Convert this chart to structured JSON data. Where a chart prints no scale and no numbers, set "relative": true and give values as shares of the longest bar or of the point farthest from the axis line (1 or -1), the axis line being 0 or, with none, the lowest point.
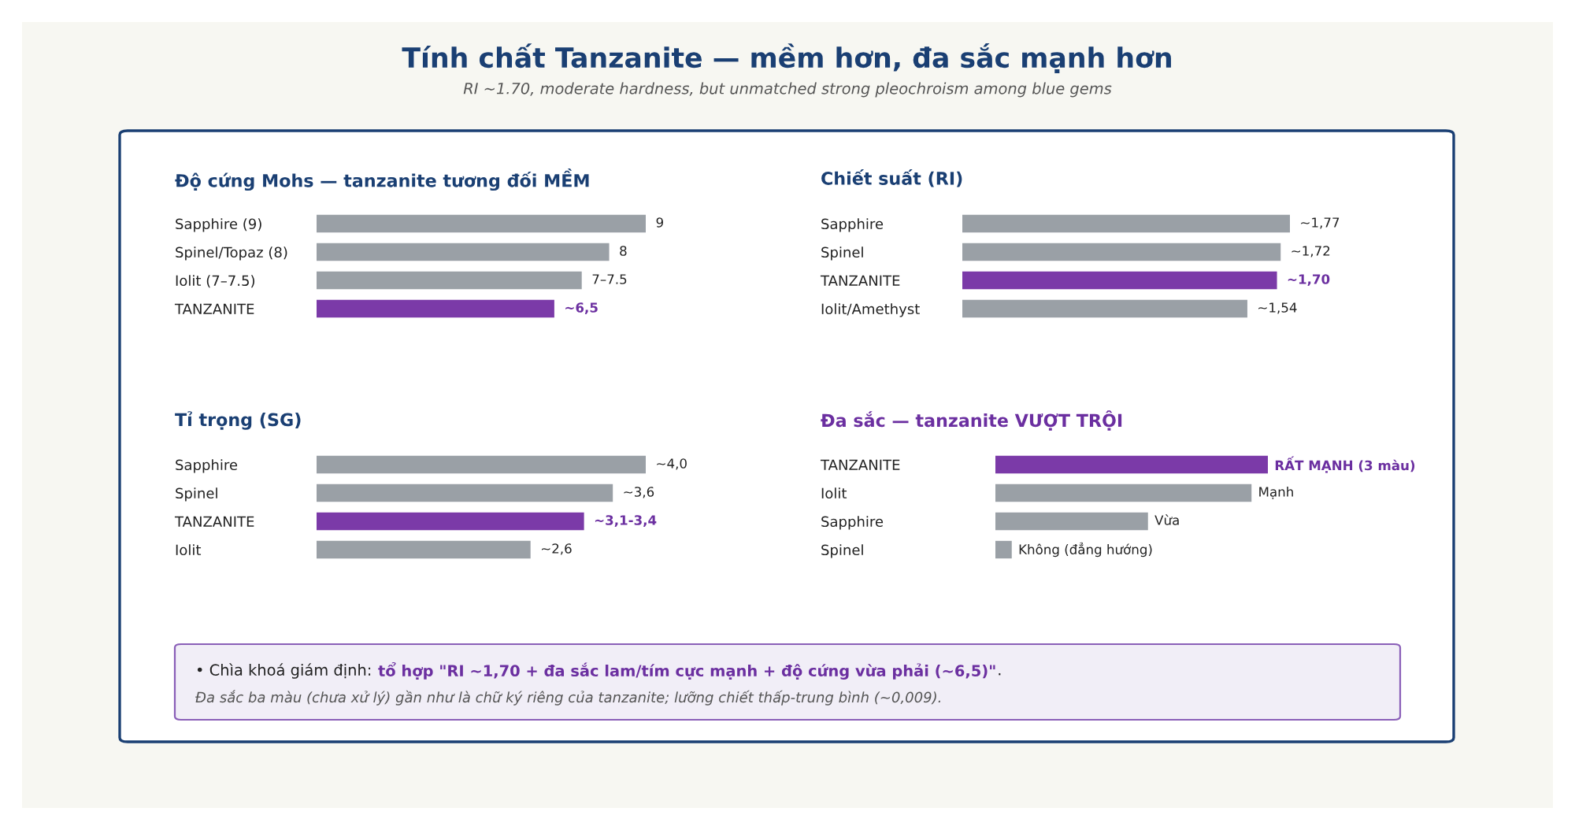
{
  "chart_data": [
    {
      "type": "other",
      "title": "Tính chất Tanzanite — mềm hơn, đa sắc mạnh hơn",
      "subtitle": "RI ~1.70, moderate hardness, but unmatched strong pleochroism among blue gems"
    },
    {
      "type": "bar",
      "orientation": "horizontal",
      "title": "Độ cứng Mohs — tanzanite tương đối MỀM",
      "categories": [
        "Sapphire (9)",
        "Spinel/Topaz (8)",
        "Iolit (7–7.5)",
        "TANZANITE"
      ],
      "values": [
        9,
        8,
        7.25,
        6.5
      ],
      "colors": [
        "#9aa0a6",
        "#9aa0a6",
        "#9aa0a6",
        "#7b3aa8"
      ],
      "value_labels": [
        "9",
        "8",
        "7–7.5",
        "~6,5"
      ]
    },
    {
      "type": "bar",
      "orientation": "horizontal",
      "title": "Chiết suất (RI)",
      "categories": [
        "Sapphire",
        "Spinel",
        "TANZANITE",
        "Iolit/Amethyst"
      ],
      "values": [
        1.77,
        1.72,
        1.7,
        1.54
      ],
      "colors": [
        "#9aa0a6",
        "#9aa0a6",
        "#7b3aa8",
        "#9aa0a6"
      ],
      "value_labels": [
        "~1,77",
        "~1,72",
        "~1,70",
        "~1,54"
      ]
    },
    {
      "type": "bar",
      "orientation": "horizontal",
      "title": "Tỉ trọng (SG)",
      "categories": [
        "Sapphire",
        "Spinel",
        "TANZANITE",
        "Iolit"
      ],
      "values": [
        4.0,
        3.6,
        3.25,
        2.6
      ],
      "colors": [
        "#9aa0a6",
        "#9aa0a6",
        "#7b3aa8",
        "#9aa0a6"
      ],
      "value_labels": [
        "~4,0",
        "~3,6",
        "~3,1-3,4",
        "~2,6"
      ]
    },
    {
      "type": "bar",
      "orientation": "horizontal",
      "relative": true,
      "title": "Đa sắc — tanzanite VƯỢT TRỘI",
      "categories": [
        "TANZANITE",
        "Iolit",
        "Sapphire",
        "Spinel"
      ],
      "values": [
        1,
        0.94,
        0.56,
        0.06
      ],
      "colors": [
        "#7b3aa8",
        "#9aa0a6",
        "#9aa0a6",
        "#9aa0a6"
      ],
      "annotations": [
        {
          "text": "RẤT MẠNH (3 màu)",
          "x": 1,
          "y": "TANZANITE"
        },
        {
          "text": "Mạnh",
          "x": 0.94,
          "y": "Iolit"
        },
        {
          "text": "Vừa",
          "x": 0.56,
          "y": "Sapphire"
        },
        {
          "text": "Không (đẳng hướng)",
          "x": 0.06,
          "y": "Spinel"
        }
      ]
    },
    {
      "type": "other",
      "annotations": [
        "• Chìa khoá giám định: ",
        "tổ hợp \"RI ~1,70 + đa sắc lam/tím cực mạnh + độ cứng vừa phải (~6,5)\"",
        ".",
        "Đa sắc ba màu (chưa xử lý) gần như là chữ ký riêng của tanzanite; lưỡng chiết thấp-trung bình (~0,009)."
      ]
    }
  ]
}
